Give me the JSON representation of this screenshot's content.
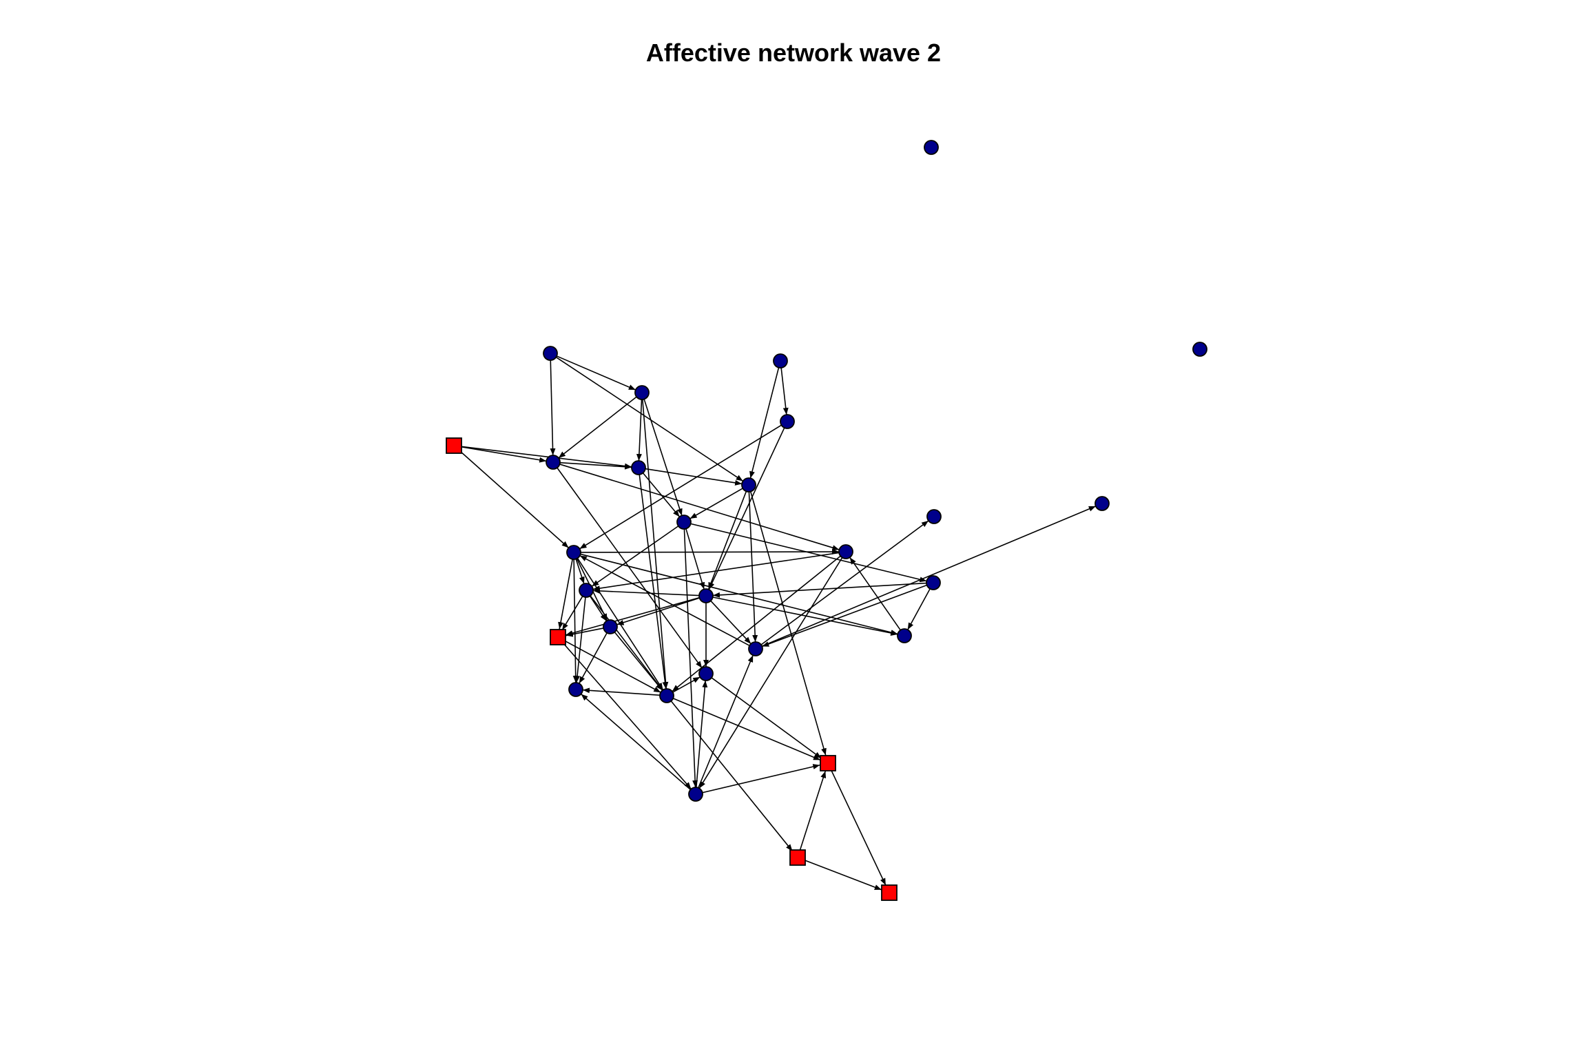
{
  "title": "Affective network wave 2",
  "colors": {
    "circle_fill": "#00008B",
    "square_fill": "#FF0000",
    "edge": "#000000",
    "outline": "#000000"
  },
  "node_shapes": {
    "c": "circle",
    "s": "square"
  },
  "nodes": [
    {
      "id": "n1",
      "shape": "c"
    },
    {
      "id": "n2",
      "shape": "c"
    },
    {
      "id": "n3",
      "shape": "c"
    },
    {
      "id": "n4",
      "shape": "c"
    },
    {
      "id": "n5",
      "shape": "c"
    },
    {
      "id": "n6",
      "shape": "c"
    },
    {
      "id": "n7",
      "shape": "s"
    },
    {
      "id": "n8",
      "shape": "c"
    },
    {
      "id": "n9",
      "shape": "c"
    },
    {
      "id": "n10",
      "shape": "c"
    },
    {
      "id": "n11",
      "shape": "c"
    },
    {
      "id": "n12",
      "shape": "c"
    },
    {
      "id": "n13",
      "shape": "c"
    },
    {
      "id": "n14",
      "shape": "c"
    },
    {
      "id": "n15",
      "shape": "c"
    },
    {
      "id": "n16",
      "shape": "c"
    },
    {
      "id": "n17",
      "shape": "c"
    },
    {
      "id": "n18",
      "shape": "c"
    },
    {
      "id": "n19",
      "shape": "c"
    },
    {
      "id": "n20",
      "shape": "s"
    },
    {
      "id": "n21",
      "shape": "c"
    },
    {
      "id": "n22",
      "shape": "c"
    },
    {
      "id": "n23",
      "shape": "c"
    },
    {
      "id": "n24",
      "shape": "c"
    },
    {
      "id": "n25",
      "shape": "c"
    },
    {
      "id": "n26",
      "shape": "s"
    },
    {
      "id": "n27",
      "shape": "c"
    },
    {
      "id": "n28",
      "shape": "s"
    },
    {
      "id": "n29",
      "shape": "s"
    }
  ],
  "edges": [
    [
      "n3",
      "n4"
    ],
    [
      "n3",
      "n8"
    ],
    [
      "n3",
      "n12"
    ],
    [
      "n4",
      "n8"
    ],
    [
      "n4",
      "n11"
    ],
    [
      "n4",
      "n13"
    ],
    [
      "n4",
      "n21"
    ],
    [
      "n5",
      "n6"
    ],
    [
      "n5",
      "n12"
    ],
    [
      "n6",
      "n17"
    ],
    [
      "n6",
      "n14"
    ],
    [
      "n7",
      "n8"
    ],
    [
      "n7",
      "n11"
    ],
    [
      "n7",
      "n14"
    ],
    [
      "n8",
      "n11"
    ],
    [
      "n8",
      "n15"
    ],
    [
      "n8",
      "n24"
    ],
    [
      "n11",
      "n12"
    ],
    [
      "n11",
      "n13"
    ],
    [
      "n11",
      "n21"
    ],
    [
      "n12",
      "n13"
    ],
    [
      "n12",
      "n17"
    ],
    [
      "n12",
      "n23"
    ],
    [
      "n12",
      "n26"
    ],
    [
      "n13",
      "n18"
    ],
    [
      "n13",
      "n16"
    ],
    [
      "n13",
      "n17"
    ],
    [
      "n13",
      "n27"
    ],
    [
      "n14",
      "n15"
    ],
    [
      "n14",
      "n19"
    ],
    [
      "n14",
      "n22"
    ],
    [
      "n14",
      "n18"
    ],
    [
      "n14",
      "n21"
    ],
    [
      "n14",
      "n20"
    ],
    [
      "n14",
      "n25"
    ],
    [
      "n15",
      "n18"
    ],
    [
      "n15",
      "n21"
    ],
    [
      "n15",
      "n27"
    ],
    [
      "n16",
      "n17"
    ],
    [
      "n16",
      "n22"
    ],
    [
      "n16",
      "n23"
    ],
    [
      "n17",
      "n18"
    ],
    [
      "n17",
      "n19"
    ],
    [
      "n17",
      "n20"
    ],
    [
      "n17",
      "n22"
    ],
    [
      "n17",
      "n24"
    ],
    [
      "n17",
      "n23"
    ],
    [
      "n18",
      "n19"
    ],
    [
      "n18",
      "n21"
    ],
    [
      "n18",
      "n20"
    ],
    [
      "n18",
      "n25"
    ],
    [
      "n19",
      "n20"
    ],
    [
      "n19",
      "n21"
    ],
    [
      "n19",
      "n25"
    ],
    [
      "n20",
      "n21"
    ],
    [
      "n20",
      "n27"
    ],
    [
      "n21",
      "n24"
    ],
    [
      "n21",
      "n28"
    ],
    [
      "n21",
      "n26"
    ],
    [
      "n21",
      "n25"
    ],
    [
      "n22",
      "n15"
    ],
    [
      "n23",
      "n9"
    ],
    [
      "n23",
      "n10"
    ],
    [
      "n23",
      "n14"
    ],
    [
      "n24",
      "n26"
    ],
    [
      "n26",
      "n29"
    ],
    [
      "n27",
      "n24"
    ],
    [
      "n27",
      "n23"
    ],
    [
      "n27",
      "n26"
    ],
    [
      "n27",
      "n25"
    ],
    [
      "n28",
      "n29"
    ],
    [
      "n28",
      "n26"
    ]
  ]
}
